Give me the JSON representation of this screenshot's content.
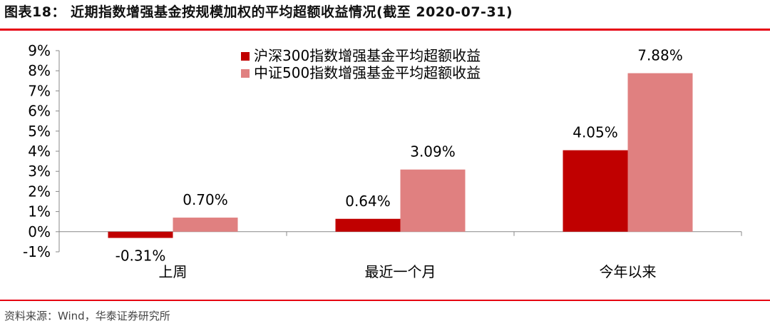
{
  "header": {
    "title": "图表18：  近期指数增强基金按规模加权的平均超额收益情况(截至 2020-07-31)"
  },
  "footer": {
    "source": "资料来源：Wind，华泰证券研究所"
  },
  "colors": {
    "accent_rule": "#e60012",
    "series1": "#c00000",
    "series2": "#e08080"
  },
  "chart_data": {
    "type": "bar",
    "categories": [
      "上周",
      "最近一个月",
      "今年以来"
    ],
    "series": [
      {
        "name": "沪深300指数增强基金平均超额收益",
        "values": [
          -0.31,
          0.64,
          4.05
        ],
        "labels": [
          "-0.31%",
          "0.64%",
          "4.05%"
        ]
      },
      {
        "name": "中证500指数增强基金平均超额收益",
        "values": [
          0.7,
          3.09,
          7.88
        ],
        "labels": [
          "0.70%",
          "3.09%",
          "7.88%"
        ]
      }
    ],
    "yticks": [
      "9%",
      "8%",
      "7%",
      "6%",
      "5%",
      "4%",
      "3%",
      "2%",
      "1%",
      "0%",
      "-1%"
    ],
    "ylim": [
      -1,
      9
    ],
    "grid": false,
    "legend": "top-center"
  }
}
